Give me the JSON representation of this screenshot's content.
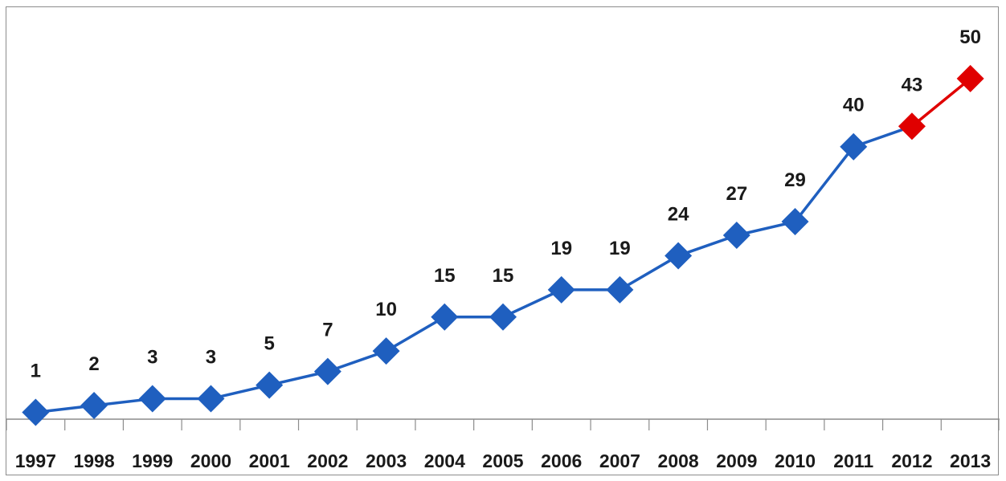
{
  "chart_data": {
    "type": "line",
    "title": "",
    "xlabel": "",
    "ylabel": "",
    "categories": [
      "1997",
      "1998",
      "1999",
      "2000",
      "2001",
      "2002",
      "2003",
      "2004",
      "2005",
      "2006",
      "2007",
      "2008",
      "2009",
      "2010",
      "2011",
      "2012",
      "2013"
    ],
    "series": [
      {
        "values": [
          1,
          2,
          3,
          3,
          5,
          7,
          10,
          15,
          15,
          19,
          19,
          24,
          27,
          29,
          40,
          43,
          50
        ],
        "color": "#1f5fbf",
        "highlight_color": "#e00000",
        "highlight_from_index": 15
      }
    ],
    "ylim": [
      0,
      54
    ],
    "grid": false,
    "legend": "none",
    "data_labels": [
      "1",
      "2",
      "3",
      "3",
      "5",
      "7",
      "10",
      "15",
      "15",
      "19",
      "19",
      "24",
      "27",
      "29",
      "40",
      "43",
      "50"
    ]
  }
}
